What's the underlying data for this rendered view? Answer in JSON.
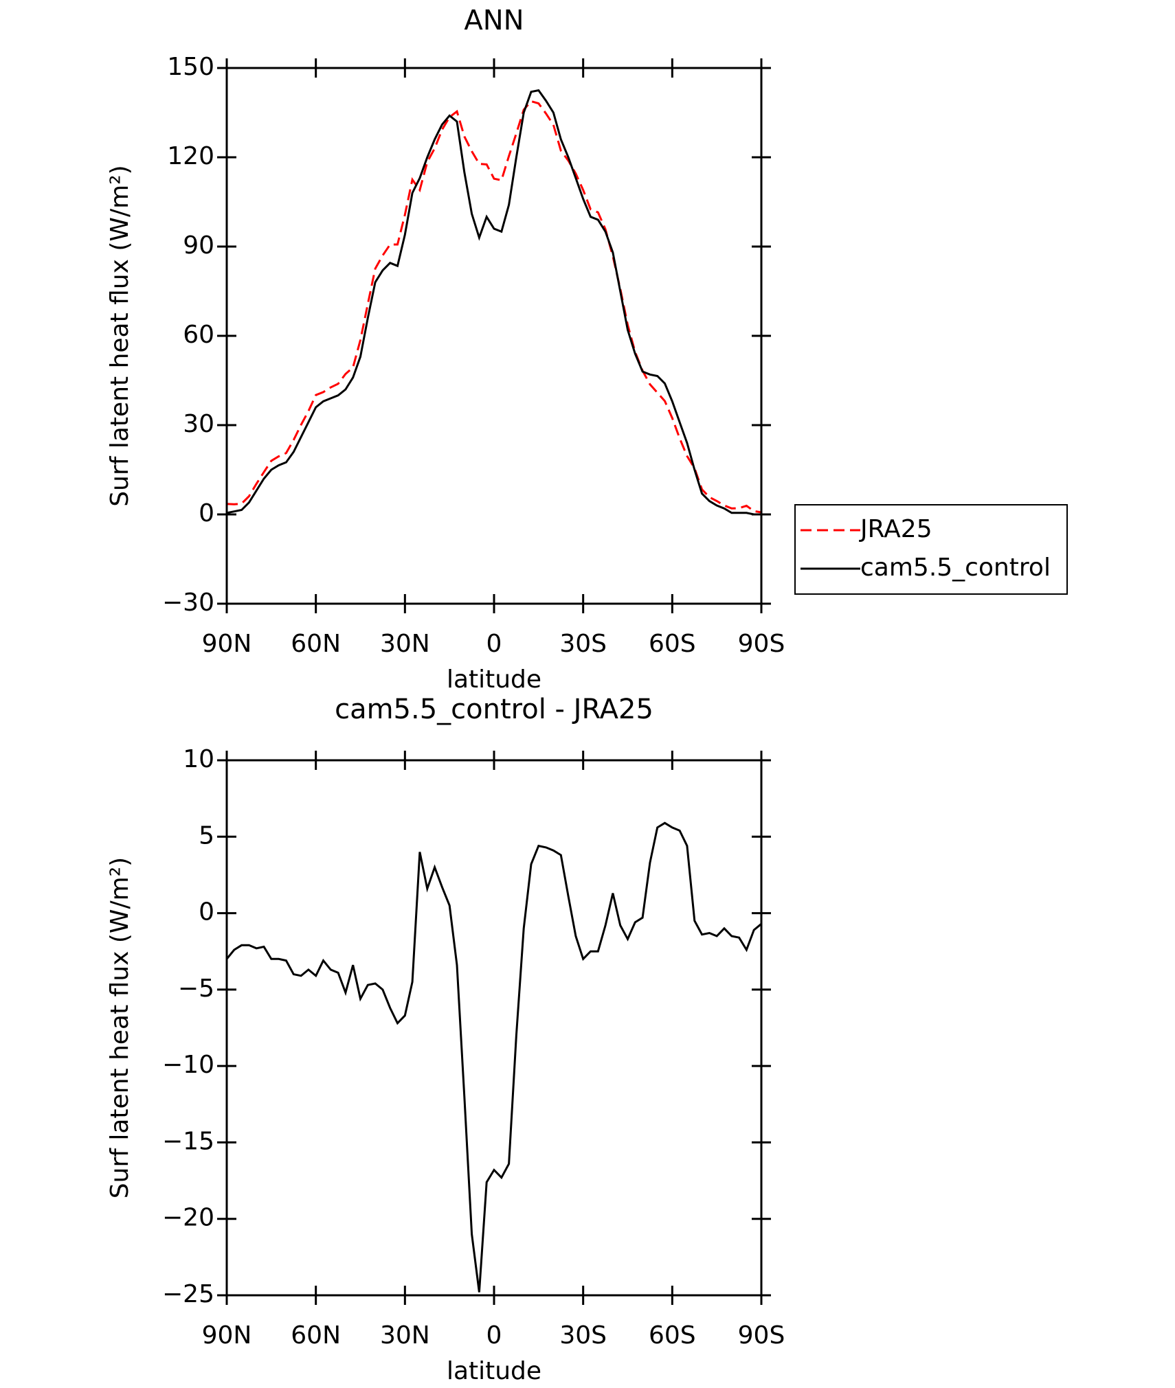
{
  "chart_data": [
    {
      "type": "line",
      "title": "ANN",
      "ylabel": "Surf latent heat flux (W/m²)",
      "xlabel": "latitude",
      "x": [
        90,
        87.5,
        85,
        82.5,
        80,
        77.5,
        75,
        72.5,
        70,
        67.5,
        65,
        62.5,
        60,
        57.5,
        55,
        52.5,
        50,
        47.5,
        45,
        42.5,
        40,
        37.5,
        35,
        32.5,
        30,
        27.5,
        25,
        22.5,
        20,
        17.5,
        15,
        12.5,
        10,
        7.5,
        5,
        2.5,
        0,
        -2.5,
        -5,
        -7.5,
        -10,
        -12.5,
        -15,
        -17.5,
        -20,
        -22.5,
        -25,
        -27.5,
        -30,
        -32.5,
        -35,
        -37.5,
        -40,
        -42.5,
        -45,
        -47.5,
        -50,
        -52.5,
        -55,
        -57.5,
        -60,
        -62.5,
        -65,
        -67.5,
        -70,
        -72.5,
        -75,
        -77.5,
        -80,
        -82.5,
        -85,
        -87.5,
        -90
      ],
      "series": [
        {
          "name": "JRA25",
          "color": "#ff0000",
          "style": "dashed",
          "values": [
            3.5,
            3.4,
            3.6,
            6.1,
            10.3,
            14.2,
            18,
            19.5,
            20.6,
            25,
            30.1,
            34.7,
            40.1,
            41.1,
            42.7,
            43.9,
            47.2,
            49.4,
            58.6,
            70.7,
            82.6,
            87,
            90.7,
            90.7,
            100.7,
            112.5,
            109,
            118.4,
            123,
            129.3,
            133.5,
            135.4,
            127,
            122,
            117.8,
            117.6,
            112.8,
            112.3,
            120.4,
            128,
            136,
            138.8,
            138.1,
            134.7,
            130.9,
            122.2,
            118.9,
            114.5,
            109,
            102.5,
            101.5,
            95.8,
            86.7,
            75.8,
            63.7,
            54.6,
            48.3,
            43.7,
            40.9,
            38.1,
            32.4,
            25.6,
            19.6,
            15.5,
            8.4,
            5.8,
            4.5,
            3,
            2,
            2.1,
            2.9,
            1.1,
            0.7
          ]
        },
        {
          "name": "cam5.5_control",
          "color": "#000000",
          "style": "solid",
          "values": [
            0.5,
            1,
            1.5,
            4,
            8,
            12,
            15,
            16.5,
            17.5,
            21,
            26,
            31,
            36,
            38,
            39,
            40,
            42,
            46,
            53,
            66,
            78,
            82,
            84.5,
            83.5,
            94,
            108,
            113,
            120,
            126,
            131,
            134,
            132,
            115,
            101,
            93,
            100,
            96,
            95,
            104,
            120,
            135,
            142,
            142.5,
            139,
            135,
            126,
            120,
            113,
            106,
            100,
            99,
            95,
            88,
            75,
            62,
            54,
            48,
            47,
            46.5,
            44,
            38,
            31,
            24,
            15,
            7,
            4.5,
            3,
            2,
            0.5,
            0.5,
            0.5,
            0,
            0
          ]
        }
      ],
      "xlim": [
        90,
        -90
      ],
      "xticks": [
        {
          "value": 90,
          "label": "90N"
        },
        {
          "value": 60,
          "label": "60N"
        },
        {
          "value": 30,
          "label": "30N"
        },
        0,
        {
          "value": -30,
          "label": "30S"
        },
        {
          "value": -60,
          "label": "60S"
        },
        {
          "value": -90,
          "label": "90S"
        }
      ],
      "ylim": [
        -30,
        150
      ],
      "yticks": [
        {
          "value": -30,
          "label": "−30"
        },
        0,
        30,
        60,
        90,
        120,
        150
      ],
      "legend": "outside-right"
    },
    {
      "type": "line",
      "title": "cam5.5_control - JRA25",
      "ylabel": "Surf latent heat flux (W/m²)",
      "xlabel": "latitude",
      "x": [
        90,
        87.5,
        85,
        82.5,
        80,
        77.5,
        75,
        72.5,
        70,
        67.5,
        65,
        62.5,
        60,
        57.5,
        55,
        52.5,
        50,
        47.5,
        45,
        42.5,
        40,
        37.5,
        35,
        32.5,
        30,
        27.5,
        25,
        22.5,
        20,
        17.5,
        15,
        12.5,
        10,
        7.5,
        5,
        2.5,
        0,
        -2.5,
        -5,
        -7.5,
        -10,
        -12.5,
        -15,
        -17.5,
        -20,
        -22.5,
        -25,
        -27.5,
        -30,
        -32.5,
        -35,
        -37.5,
        -40,
        -42.5,
        -45,
        -47.5,
        -50,
        -52.5,
        -55,
        -57.5,
        -60,
        -62.5,
        -65,
        -67.5,
        -70,
        -72.5,
        -75,
        -77.5,
        -80,
        -82.5,
        -85,
        -87.5,
        -90
      ],
      "series": [
        {
          "color": "#000000",
          "style": "solid",
          "values": [
            -3,
            -2.4,
            -2.1,
            -2.1,
            -2.3,
            -2.2,
            -3,
            -3,
            -3.1,
            -4,
            -4.1,
            -3.7,
            -4.1,
            -3.1,
            -3.7,
            -3.9,
            -5.2,
            -3.4,
            -5.6,
            -4.7,
            -4.6,
            -5,
            -6.2,
            -7.2,
            -6.7,
            -4.5,
            4,
            1.6,
            3,
            1.7,
            0.5,
            -3.4,
            -12,
            -21,
            -24.8,
            -17.6,
            -16.8,
            -17.3,
            -16.4,
            -8,
            -1,
            3.2,
            4.4,
            4.3,
            4.1,
            3.8,
            1.1,
            -1.5,
            -3,
            -2.5,
            -2.5,
            -0.8,
            1.3,
            -0.8,
            -1.7,
            -0.6,
            -0.3,
            3.3,
            5.6,
            5.9,
            5.6,
            5.4,
            4.4,
            -0.5,
            -1.4,
            -1.3,
            -1.5,
            -1,
            -1.5,
            -1.6,
            -2.4,
            -1.1,
            -0.7
          ]
        }
      ],
      "xlim": [
        90,
        -90
      ],
      "xticks": [
        {
          "value": 90,
          "label": "90N"
        },
        {
          "value": 60,
          "label": "60N"
        },
        {
          "value": 30,
          "label": "30N"
        },
        0,
        {
          "value": -30,
          "label": "30S"
        },
        {
          "value": -60,
          "label": "60S"
        },
        {
          "value": -90,
          "label": "90S"
        }
      ],
      "ylim": [
        -25,
        10
      ],
      "yticks": [
        {
          "value": -25,
          "label": "−25"
        },
        {
          "value": -20,
          "label": "−20"
        },
        {
          "value": -15,
          "label": "−15"
        },
        {
          "value": -10,
          "label": "−10"
        },
        {
          "value": -5,
          "label": "−5"
        },
        0,
        5,
        10
      ]
    }
  ]
}
